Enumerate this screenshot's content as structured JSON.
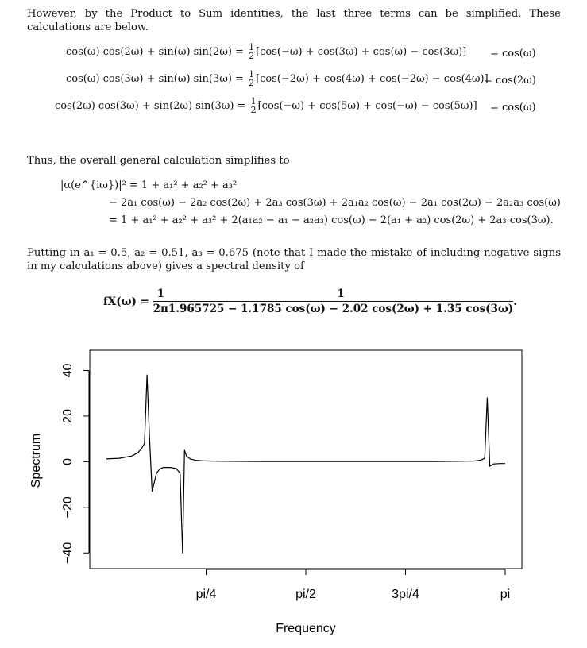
{
  "intro_text": "However, by the Product to Sum identities, the last three terms can be simplified. These calculations are below.",
  "identities": [
    {
      "lhs": "cos(ω) cos(2ω) + sin(ω) sin(2ω) =",
      "coef_num": "1",
      "coef_den": "2",
      "bracket": "[cos(−ω) + cos(3ω) + cos(ω) − cos(3ω)]",
      "result": "= cos(ω)"
    },
    {
      "lhs": "cos(ω) cos(3ω) + sin(ω) sin(3ω) =",
      "coef_num": "1",
      "coef_den": "2",
      "bracket": "[cos(−2ω) + cos(4ω) + cos(−2ω) − cos(4ω)]",
      "result": "= cos(2ω)"
    },
    {
      "lhs": "cos(2ω) cos(3ω) + sin(2ω) sin(3ω) =",
      "coef_num": "1",
      "coef_den": "2",
      "bracket": "[cos(−ω) + cos(5ω) + cos(−ω) − cos(5ω)]",
      "result": "= cos(ω)"
    }
  ],
  "thus_text": "Thus, the overall general calculation simplifies to",
  "general_lines": [
    "|α(e^{iω})|² = 1 + a₁² + a₂² + a₃²",
    "− 2a₁ cos(ω) − 2a₂ cos(2ω) + 2a₃ cos(3ω) + 2a₁a₂ cos(ω) − 2a₁ cos(2ω) − 2a₂a₃ cos(ω)",
    "= 1 + a₁² + a₂² + a₃² + 2(a₁a₂ − a₁ − a₂a₃) cos(ω) − 2(a₁ + a₂) cos(2ω) + 2a₃ cos(3ω)."
  ],
  "putting_text": "Putting in a₁ = 0.5,  a₂ = 0.51,  a₃ = 0.675 (note that I made the mistake of including negative signs in my calculations above) gives a spectral density of",
  "density": {
    "lhs": "fX(ω) =",
    "f1_num": "1",
    "f1_den": "2π",
    "f2_num": "1",
    "f2_den": "1.965725 − 1.1785 cos(ω) − 2.02 cos(2ω) + 1.35 cos(3ω)",
    "end": "."
  },
  "chart_data": {
    "type": "line",
    "xlabel": "Frequency",
    "ylabel": "Spectrum",
    "xlim": [
      0.0,
      3.1416
    ],
    "ylim": [
      -42,
      44
    ],
    "x_ticks": [
      {
        "value": 0.7854,
        "label": "pi/4"
      },
      {
        "value": 1.5708,
        "label": "pi/2"
      },
      {
        "value": 2.3562,
        "label": "3pi/4"
      },
      {
        "value": 3.1416,
        "label": "pi"
      }
    ],
    "y_ticks": [
      {
        "value": -40,
        "label": "−40"
      },
      {
        "value": -20,
        "label": "−20"
      },
      {
        "value": 0,
        "label": "0"
      },
      {
        "value": 20,
        "label": "20"
      },
      {
        "value": 40,
        "label": "40"
      }
    ],
    "series": [
      {
        "x": [
          0.0,
          0.1,
          0.2,
          0.25,
          0.28,
          0.3,
          0.32,
          0.34,
          0.36,
          0.395,
          0.42,
          0.45,
          0.5,
          0.55,
          0.58,
          0.6,
          0.615,
          0.63,
          0.66,
          0.7,
          0.75,
          0.8,
          0.9,
          1.0,
          1.2,
          1.4,
          1.6,
          1.8,
          2.0,
          2.2,
          2.4,
          2.6,
          2.8,
          2.9,
          2.95,
          2.98,
          3.0,
          3.02,
          3.05,
          3.1,
          3.1416
        ],
        "y": [
          1.2,
          1.5,
          2.5,
          4.0,
          6.0,
          8.0,
          38.0,
          10.0,
          -13.0,
          -5.0,
          -3.2,
          -2.5,
          -2.5,
          -3.0,
          -5.0,
          -40.0,
          5.0,
          2.5,
          1.2,
          0.6,
          0.4,
          0.3,
          0.2,
          0.15,
          0.1,
          0.1,
          0.1,
          0.1,
          0.1,
          0.1,
          0.1,
          0.1,
          0.2,
          0.3,
          0.7,
          1.5,
          28.0,
          -2.0,
          -1.0,
          -0.8,
          -0.8
        ]
      }
    ]
  }
}
